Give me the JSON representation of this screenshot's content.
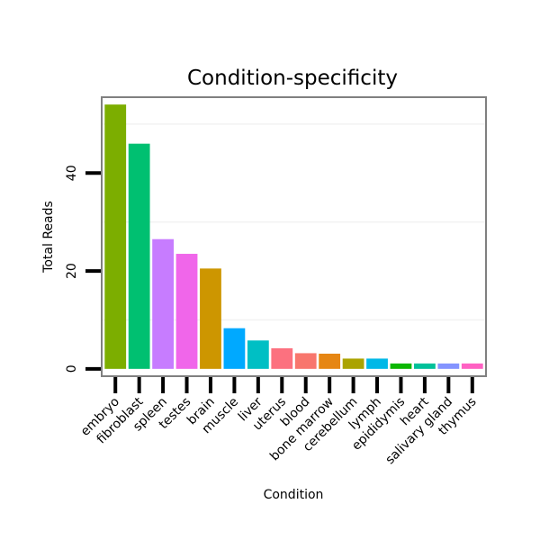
{
  "chart_data": {
    "type": "bar",
    "title": "Condition-specificity",
    "xlabel": "Condition",
    "ylabel": "Total Reads",
    "ylim": [
      -1.5,
      55.5
    ],
    "yticks": [
      0,
      20,
      40
    ],
    "grid": true,
    "legend": "none",
    "categories": [
      "embryo",
      "fibroblast",
      "spleen",
      "testes",
      "brain",
      "muscle",
      "liver",
      "uterus",
      "blood",
      "bone marrow",
      "cerebellum",
      "lymph",
      "epididymis",
      "heart",
      "salivary gland",
      "thymus"
    ],
    "values": [
      54,
      46,
      26.5,
      23.5,
      20.5,
      8.3,
      5.8,
      4.2,
      3.2,
      3.1,
      2.1,
      2.1,
      1.1,
      1.1,
      1.1,
      1.1
    ],
    "colors": [
      "#7cae00",
      "#00c071",
      "#c77cff",
      "#f066ea",
      "#cd9600",
      "#00a9ff",
      "#00bfc4",
      "#fc717f",
      "#f8766d",
      "#e68613",
      "#aba300",
      "#00b8e7",
      "#0cb702",
      "#00c19a",
      "#8494ff",
      "#ff61c3"
    ]
  }
}
